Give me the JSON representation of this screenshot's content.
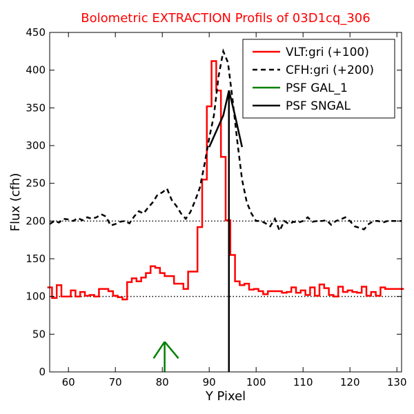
{
  "chart_data": {
    "type": "line",
    "title": "Bolometric EXTRACTION Profils of 03D1cq_306",
    "title_color": "#ff0000",
    "xlabel": "Y Pixel",
    "ylabel": "Flux (cfh)",
    "xlim": [
      56,
      131
    ],
    "ylim": [
      0,
      450
    ],
    "xticks": [
      "60",
      "70",
      "80",
      "90",
      "100",
      "110",
      "120",
      "130"
    ],
    "yticks": [
      "0",
      "50",
      "100",
      "150",
      "200",
      "250",
      "300",
      "350",
      "400",
      "450"
    ],
    "grid": false,
    "legend_position": "top-right",
    "reference_lines": [
      100,
      200
    ],
    "series": [
      {
        "name": "VLT:gri (+100)",
        "style": "steps-solid",
        "color": "#ff0000",
        "x": [
          56,
          57,
          58,
          59,
          60,
          61,
          62,
          63,
          64,
          65,
          66,
          67,
          68,
          69,
          70,
          71,
          72,
          73,
          74,
          75,
          76,
          77,
          78,
          79,
          80,
          81,
          82,
          83,
          84,
          85,
          86,
          87,
          88,
          89,
          90,
          91,
          92,
          93,
          94,
          95,
          96,
          97,
          98,
          99,
          100,
          101,
          102,
          103,
          104,
          105,
          106,
          107,
          108,
          109,
          110,
          111,
          112,
          113,
          114,
          115,
          116,
          117,
          118,
          119,
          120,
          121,
          122,
          123,
          124,
          125,
          126,
          127,
          128,
          129,
          130,
          131
        ],
        "y": [
          112,
          98,
          115,
          100,
          100,
          108,
          100,
          106,
          101,
          102,
          100,
          110,
          110,
          107,
          101,
          99,
          96,
          119,
          124,
          120,
          125,
          131,
          140,
          138,
          131,
          127,
          127,
          117,
          117,
          110,
          133,
          133,
          192,
          255,
          352,
          412,
          373,
          285,
          201,
          155,
          120,
          115,
          117,
          109,
          110,
          107,
          103,
          107,
          107,
          107,
          105,
          106,
          112,
          105,
          108,
          102,
          112,
          101,
          116,
          111,
          102,
          100,
          113,
          106,
          108,
          106,
          105,
          113,
          101,
          106,
          101,
          112,
          110,
          110,
          110,
          110
        ]
      },
      {
        "name": "CFH:gri (+200)",
        "style": "dashed",
        "color": "#000000",
        "x": [
          56,
          57,
          58,
          59,
          60,
          61,
          62,
          63,
          64,
          65,
          66,
          67,
          68,
          69,
          70,
          71,
          72,
          73,
          74,
          75,
          76,
          77,
          78,
          79,
          80,
          81,
          82,
          83,
          84,
          85,
          86,
          87,
          88,
          89,
          90,
          91,
          92,
          93,
          94,
          95,
          96,
          97,
          98,
          99,
          100,
          101,
          102,
          103,
          104,
          105,
          106,
          107,
          108,
          109,
          110,
          111,
          112,
          113,
          114,
          115,
          116,
          117,
          118,
          119,
          120,
          121,
          122,
          123,
          124,
          125,
          126,
          127,
          128,
          129,
          130,
          131
        ],
        "y": [
          196,
          200,
          198,
          203,
          202,
          200,
          204,
          201,
          205,
          203,
          205,
          209,
          206,
          194,
          196,
          199,
          200,
          197,
          206,
          213,
          210,
          218,
          225,
          235,
          238,
          243,
          228,
          220,
          210,
          203,
          212,
          227,
          244,
          275,
          310,
          340,
          392,
          425,
          410,
          360,
          305,
          255,
          225,
          210,
          200,
          200,
          197,
          193,
          203,
          187,
          200,
          196,
          199,
          198,
          200,
          205,
          199,
          200,
          200,
          201,
          195,
          200,
          202,
          205,
          200,
          193,
          191,
          189,
          196,
          200,
          200,
          198,
          200,
          200,
          200,
          200
        ]
      },
      {
        "name": "PSF GAL_1",
        "style": "arrow",
        "color": "#008000",
        "x": [
          80.5
        ],
        "y": [
          40
        ]
      },
      {
        "name": "PSF SNGAL",
        "style": "psf",
        "color": "#000000",
        "x": [
          90,
          93,
          94.2,
          95.5,
          97
        ],
        "y": [
          298,
          340,
          373,
          340,
          298
        ]
      }
    ]
  }
}
